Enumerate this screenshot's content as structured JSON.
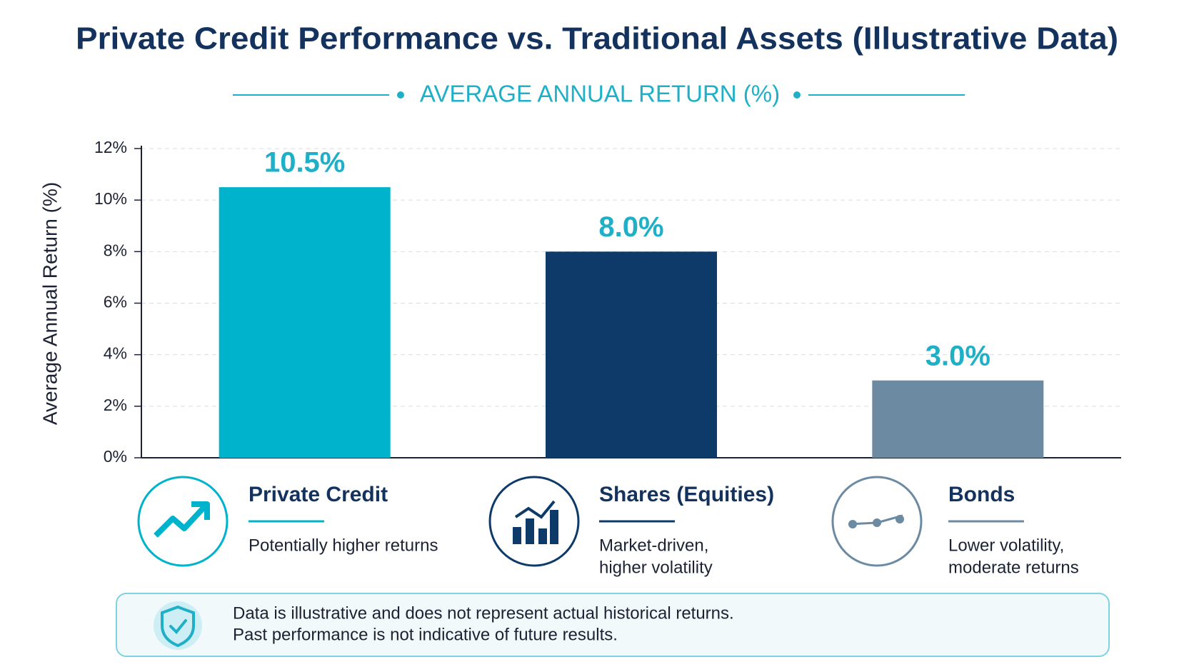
{
  "chart_data": {
    "type": "bar",
    "title": "Private Credit Performance vs. Traditional Assets (Illustrative Data)",
    "subtitle": "AVERAGE ANNUAL RETURN (%)",
    "y_axis_label": "Average Annual Return (%)",
    "categories": [
      "Private Credit",
      "Shares (Equities)",
      "Bonds"
    ],
    "values": [
      10.5,
      8.0,
      3.0
    ],
    "value_labels": [
      "10.5%",
      "8.0%",
      "3.0%"
    ],
    "colors": [
      "#00b3cc",
      "#0d3a68",
      "#6c8ba3"
    ],
    "ylim": [
      0,
      12
    ],
    "yticks": [
      {
        "value": 0,
        "label": "0%"
      },
      {
        "value": 2,
        "label": "2%"
      },
      {
        "value": 4,
        "label": "4%"
      },
      {
        "value": 6,
        "label": "6%"
      },
      {
        "value": 8,
        "label": "8%"
      },
      {
        "value": 10,
        "label": "10%"
      },
      {
        "value": 12,
        "label": "12%"
      }
    ],
    "grid": true,
    "descriptions": [
      [
        "Potentially higher returns"
      ],
      [
        "Market-driven,",
        "higher volatility"
      ],
      [
        "Lower volatility,",
        "moderate returns"
      ]
    ]
  },
  "footnote": [
    "Data is illustrative and does not represent actual historical returns.",
    "Past performance is not indicative of future results."
  ]
}
